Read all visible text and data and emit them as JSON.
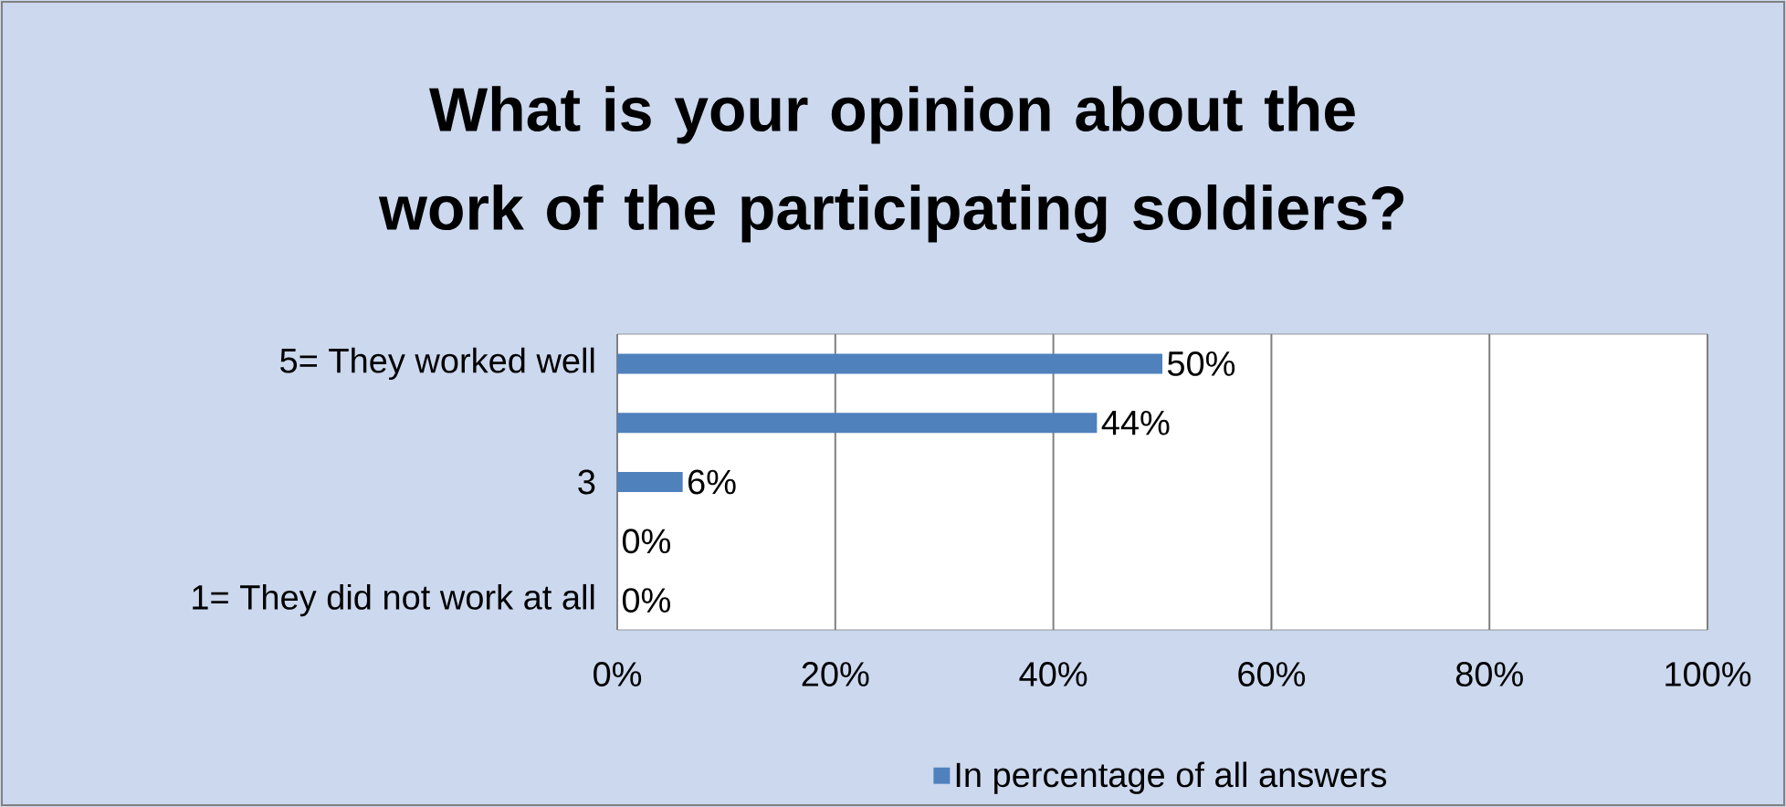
{
  "chart_data": {
    "type": "bar",
    "orientation": "horizontal",
    "title": "What is your opinion about the work of the participating soldiers?",
    "categories": [
      "5= They worked well",
      null,
      "3",
      null,
      "1= They did not work at all"
    ],
    "series": [
      {
        "name": "In percentage of all answers",
        "color": "#4f81bd",
        "values": [
          50,
          44,
          6,
          0,
          0
        ],
        "value_labels": [
          "50%",
          "44%",
          "6%",
          "0%",
          "0%"
        ]
      }
    ],
    "xlim": [
      0,
      100
    ],
    "xticks": [
      {
        "value": 0,
        "label": "0%"
      },
      {
        "value": 20,
        "label": "20%"
      },
      {
        "value": 40,
        "label": "40%"
      },
      {
        "value": 60,
        "label": "60%"
      },
      {
        "value": 80,
        "label": "80%"
      },
      {
        "value": 100,
        "label": "100%"
      }
    ],
    "grid": "x",
    "legend": "bottom"
  }
}
